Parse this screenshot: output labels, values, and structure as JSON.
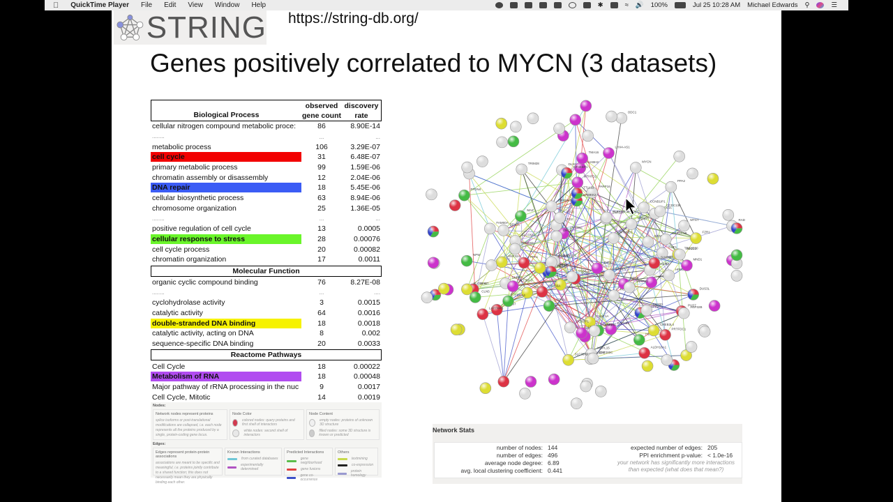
{
  "menubar": {
    "app": "QuickTime Player",
    "menus": [
      "File",
      "Edit",
      "View",
      "Window",
      "Help"
    ],
    "battery": "100%",
    "datetime": "Jul 25  10:28 AM",
    "user": "Michael Edwards"
  },
  "slide": {
    "logo_text": "STRING",
    "url": "https://string-db.org/",
    "title": "Genes positively correlated to MYCN (3 datasets)"
  },
  "table": {
    "headers": {
      "process": "Biological Process",
      "count_l1": "observed",
      "count_l2": "gene count",
      "rate_l1": "discovery",
      "rate_l2": "rate"
    },
    "bio_rows": [
      {
        "term": "cellular nitrogen compound metabolic proce:",
        "count": "86",
        "rate": "8.90E-14"
      },
      {
        "term": "........",
        "count": "...",
        "rate": "..."
      },
      {
        "term": "metabolic process",
        "count": "106",
        "rate": "3.29E-07"
      },
      {
        "term": "cell cycle",
        "count": "31",
        "rate": "6.48E-07",
        "highlight": "#f20000"
      },
      {
        "term": "primary metabolic process",
        "count": "99",
        "rate": "1.59E-06"
      },
      {
        "term": "chromatin assembly or disassembly",
        "count": "12",
        "rate": "2.04E-06"
      },
      {
        "term": "DNA repair",
        "count": "18",
        "rate": "5.45E-06",
        "highlight": "#3b5cf5"
      },
      {
        "term": "cellular biosynthetic process",
        "count": "63",
        "rate": "8.94E-06"
      },
      {
        "term": "chromosome organization",
        "count": "25",
        "rate": "1.36E-05"
      },
      {
        "term": "........",
        "count": "...",
        "rate": "..."
      },
      {
        "term": "positive regulation of cell cycle",
        "count": "13",
        "rate": "0.0005"
      },
      {
        "term": "cellular response to stress",
        "count": "28",
        "rate": "0.00076",
        "highlight": "#6af52a"
      },
      {
        "term": "cell cycle process",
        "count": "20",
        "rate": "0.00082"
      },
      {
        "term": "chromatin organization",
        "count": "17",
        "rate": "0.0011"
      }
    ],
    "mf_title": "Molecular Function",
    "mf_rows": [
      {
        "term": "organic cyclic compound binding",
        "count": "76",
        "rate": "8.27E-08"
      },
      {
        "term": "........",
        "count": "...",
        "rate": "...."
      },
      {
        "term": "cyclohydrolase activity",
        "count": "3",
        "rate": "0.0015"
      },
      {
        "term": "catalytic activity",
        "count": "64",
        "rate": "0.0016"
      },
      {
        "term": "double-stranded DNA binding",
        "count": "18",
        "rate": "0.0018",
        "highlight": "#f6f200"
      },
      {
        "term": "catalytic activity, acting on DNA",
        "count": "8",
        "rate": "0.002"
      },
      {
        "term": "sequence-specific DNA binding",
        "count": "20",
        "rate": "0.0033"
      }
    ],
    "rp_title": "Reactome Pathways",
    "rp_rows": [
      {
        "term": "Cell Cycle",
        "count": "18",
        "rate": "0.00022"
      },
      {
        "term": "Metabolism of RNA",
        "count": "18",
        "rate": "0.00048",
        "highlight": "#b14cf0"
      },
      {
        "term": "Major pathway of rRNA processing in the nuc",
        "count": "9",
        "rate": "0.0017"
      },
      {
        "term": "Cell Cycle, Mitotic",
        "count": "14",
        "rate": "0.0019"
      }
    ]
  },
  "legend": {
    "nodes_label": "Nodes:",
    "box1_title": "Network nodes represent proteins",
    "box1_text": "splice isoforms or post-translational modifications are collapsed, i.e. each node represents all the proteins produced by a single, protein-coding gene locus.",
    "box2_title": "Node Color",
    "colored": "colored nodes: query proteins and first shell of interactors",
    "white": "white nodes: second shell of interactors",
    "box3_title": "Node Content",
    "empty": "empty nodes: proteins of unknown 3D structure",
    "filled": "filled nodes: some 3D structure is known or predicted",
    "edges_label": "Edges:",
    "e1_title": "Edges represent protein-protein associations",
    "e1_text": "associations are meant to be specific and meaningful, i.e. proteins jointly contribute to a shared function; this does not necessarily mean they are physically binding each other.",
    "e2_title": "Known Interactions",
    "curated": "from curated databases",
    "experimental": "experimentally determined",
    "e3_title": "Predicted Interactions",
    "neighborhood": "gene neighborhood",
    "fusion": "gene fusions",
    "cooccurrence": "gene co-occurrence",
    "e4_title": "Others",
    "textmining": "textmining",
    "coexpression": "co-expression",
    "homology": "protein homology"
  },
  "network": {
    "labels": [
      "METAP1",
      "NOS1",
      "PUS7",
      "NOA1",
      "LRPPRC",
      "MRPL15",
      "DDX21",
      "DUS3L",
      "H2AFY2",
      "KATNB1",
      "ITPRIPL1",
      "GUF1",
      "SLCO5A1",
      "PARP16",
      "ANP32B",
      "CCNB1IP1",
      "MAZ",
      "SCFD2",
      "HIST3H2A",
      "TMEM97",
      "BZW2",
      "ANP32A",
      "SNRPA",
      "USP3",
      "SLC38A5",
      "FZR1",
      "ALKBH2",
      "C14orf93",
      "ZNF581",
      "CAMKK2",
      "SUV39H2",
      "TRIM59",
      "ECSIT",
      "NONO",
      "MIS18A",
      "HDAC1",
      "TRIM28",
      "ZNF124",
      "ZNF93",
      "MYCN",
      "SMARCC1",
      "ZRANB3",
      "CHAF1A",
      "RCOR2",
      "ORC6",
      "CD320",
      "MND1",
      "TTLL12",
      "DLX6",
      "GDAP1L1",
      "CENPV",
      "SOD1",
      "SLC30A3",
      "MEX3A",
      "PRTFDC1",
      "NPW",
      "SLC16A1",
      "CDCA4",
      "LHX4-AS1",
      "TBC1D30",
      "NETO2",
      "FAM60A",
      "TMA16",
      "CLN5",
      "VAX2",
      "ABCC1",
      "TCF3",
      "FAM83D",
      "DEPDC1B",
      "RAB33A",
      "ZNF280C",
      "CCDC136",
      "PLEKHG4B",
      "LAPTM4B",
      "KIF15",
      "CEP72",
      "CCNI",
      "MTHFD2",
      "MTHFD1",
      "C4orf46",
      "CREB3L4",
      "HPDL",
      "ATP6V1",
      "PPA1",
      "PPA2",
      "MTST",
      "ANAPC1",
      "EIF4EBP1",
      "DCTPP1",
      "ALDH18A1",
      "ODC1",
      "PFDN4",
      "RAD51AP1"
    ]
  },
  "stats": {
    "title": "Network Stats",
    "nodes_label": "number of nodes:",
    "nodes": "144",
    "edges_label": "number of edges:",
    "edges": "496",
    "degree_label": "average node degree:",
    "degree": "6.89",
    "clust_label": "avg. local clustering coefficient:",
    "clust": "0.441",
    "expected_label": "expected number of edges:",
    "expected": "205",
    "pval_label": "PPI enrichment p-value:",
    "pval": "< 1.0e-16",
    "note1": "your network has significantly more interactions",
    "note2": "than expected (what does that mean?)"
  }
}
